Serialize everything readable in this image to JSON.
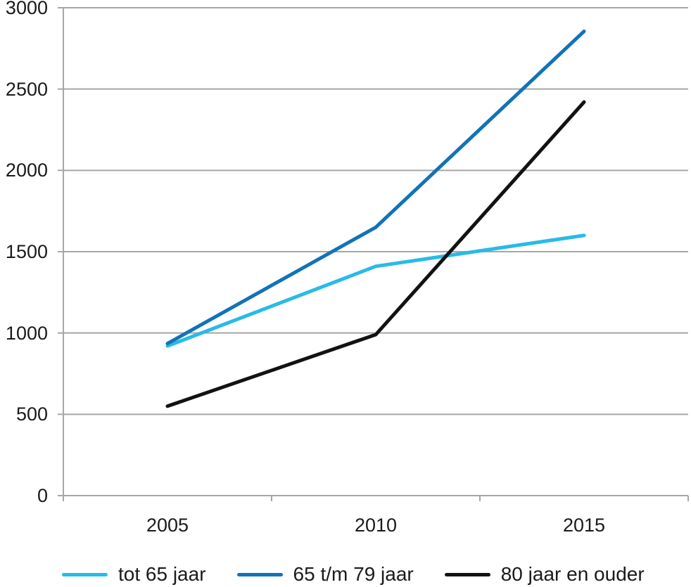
{
  "chart_data": {
    "type": "line",
    "title": "",
    "xlabel": "",
    "ylabel": "",
    "categories": [
      "2005",
      "2010",
      "2015"
    ],
    "series": [
      {
        "name": "tot 65 jaar",
        "color": "#29BAE8",
        "values": [
          920,
          1410,
          1600
        ]
      },
      {
        "name": "65 t/m 79 jaar",
        "color": "#1173B7",
        "values": [
          935,
          1650,
          2855
        ]
      },
      {
        "name": "80 jaar en ouder",
        "color": "#121212",
        "values": [
          550,
          990,
          2420
        ]
      }
    ],
    "ylim": [
      0,
      3000
    ],
    "ytick_step": 500,
    "ytick_labels": [
      "0",
      "500",
      "1000",
      "1500",
      "2000",
      "2500",
      "3000"
    ],
    "xtick_labels": [
      "2005",
      "2010",
      "2015"
    ],
    "grid": true,
    "legend_position": "bottom",
    "gridline_color": "#A6A6A6",
    "text_color": "#1A1A1A",
    "line_width": 5
  }
}
